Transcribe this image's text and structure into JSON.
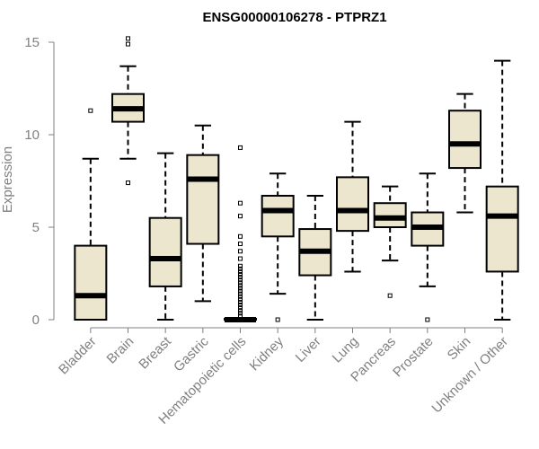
{
  "chart_data": {
    "type": "box",
    "title": "ENSG00000106278 - PTPRZ1",
    "xlabel": "",
    "ylabel": "Expression",
    "ylim": [
      0,
      15
    ],
    "yticks": [
      0,
      5,
      10,
      15
    ],
    "box_color": "#ede6cf",
    "categories": [
      "Bladder",
      "Brain",
      "Breast",
      "Gastric",
      "Hematopoietic cells",
      "Kidney",
      "Liver",
      "Lung",
      "Pancreas",
      "Prostate",
      "Skin",
      "Unknown / Other"
    ],
    "series": [
      {
        "name": "Bladder",
        "whisker_low": 0,
        "q1": 0,
        "median": 1.3,
        "q3": 4.0,
        "whisker_high": 8.7,
        "outliers": [
          11.3
        ]
      },
      {
        "name": "Brain",
        "whisker_low": 8.7,
        "q1": 10.7,
        "median": 11.4,
        "q3": 12.2,
        "whisker_high": 13.7,
        "outliers": [
          7.4,
          14.9,
          15.2
        ]
      },
      {
        "name": "Breast",
        "whisker_low": 0,
        "q1": 1.8,
        "median": 3.3,
        "q3": 5.5,
        "whisker_high": 9.0,
        "outliers": []
      },
      {
        "name": "Gastric",
        "whisker_low": 1.0,
        "q1": 4.1,
        "median": 7.6,
        "q3": 8.9,
        "whisker_high": 10.5,
        "outliers": []
      },
      {
        "name": "Hematopoietic cells",
        "whisker_low": 0,
        "q1": 0,
        "median": 0,
        "q3": 0.05,
        "whisker_high": 0.1,
        "outliers": [
          0.2,
          0.35,
          0.5,
          0.65,
          0.8,
          0.95,
          1.1,
          1.25,
          1.4,
          1.55,
          1.7,
          1.85,
          2.0,
          2.15,
          2.3,
          2.45,
          2.6,
          2.75,
          2.9,
          3.3,
          3.7,
          4.1,
          4.5,
          5.6,
          6.3,
          9.3
        ]
      },
      {
        "name": "Kidney",
        "whisker_low": 1.4,
        "q1": 4.5,
        "median": 5.9,
        "q3": 6.7,
        "whisker_high": 7.9,
        "outliers": [
          0
        ]
      },
      {
        "name": "Liver",
        "whisker_low": 0,
        "q1": 2.4,
        "median": 3.7,
        "q3": 4.9,
        "whisker_high": 6.7,
        "outliers": []
      },
      {
        "name": "Lung",
        "whisker_low": 2.6,
        "q1": 4.8,
        "median": 5.9,
        "q3": 7.7,
        "whisker_high": 10.7,
        "outliers": []
      },
      {
        "name": "Pancreas",
        "whisker_low": 3.2,
        "q1": 5.0,
        "median": 5.5,
        "q3": 6.3,
        "whisker_high": 7.2,
        "outliers": [
          1.3
        ]
      },
      {
        "name": "Prostate",
        "whisker_low": 1.8,
        "q1": 4.0,
        "median": 5.0,
        "q3": 5.8,
        "whisker_high": 7.9,
        "outliers": [
          0
        ]
      },
      {
        "name": "Skin",
        "whisker_low": 5.8,
        "q1": 8.2,
        "median": 9.5,
        "q3": 11.3,
        "whisker_high": 12.2,
        "outliers": []
      },
      {
        "name": "Unknown / Other",
        "whisker_low": 0,
        "q1": 2.6,
        "median": 5.6,
        "q3": 7.2,
        "whisker_high": 14.0,
        "outliers": []
      }
    ]
  }
}
